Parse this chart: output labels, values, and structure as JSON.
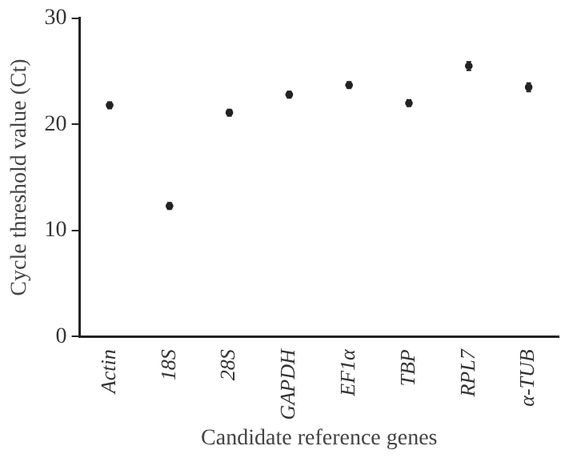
{
  "chart_data": {
    "type": "scatter",
    "xlabel": "Candidate reference genes",
    "ylabel": "Cycle threshold value (Ct)",
    "categories": [
      "Actin",
      "18S",
      "28S",
      "GAPDH",
      "EF1α",
      "TBP",
      "RPL7",
      "α-TUB"
    ],
    "values": [
      21.8,
      12.3,
      21.1,
      22.8,
      23.7,
      22.0,
      25.5,
      23.5
    ],
    "errors": [
      0.3,
      0.3,
      0.3,
      0.3,
      0.3,
      0.3,
      0.4,
      0.4
    ],
    "color": "#222222",
    "ylim": [
      0,
      30
    ],
    "yticks": [
      0,
      10,
      20,
      30
    ],
    "grid": false,
    "legend": false
  }
}
